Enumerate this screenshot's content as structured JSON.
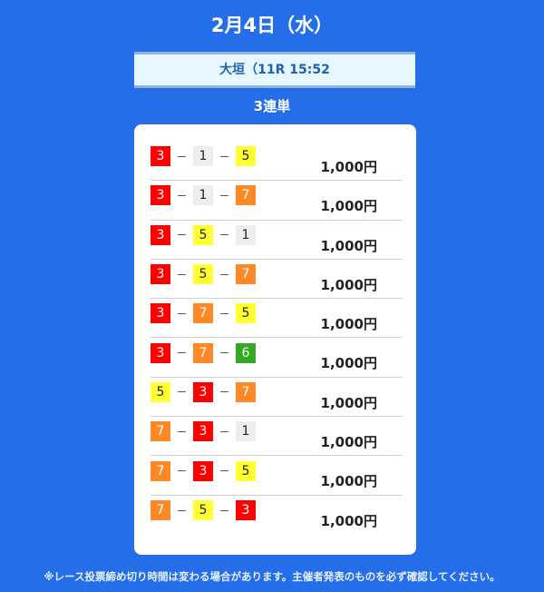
{
  "title": "2月4日（水）",
  "venue": "大垣（11R 15:52",
  "bet_type": "3連単",
  "colors": {
    "1": "#eeeeee",
    "3": "#ff0000",
    "5": "#ffff33",
    "6": "#35a825",
    "7": "#ff8826"
  },
  "text_colors": {
    "1": "#222222",
    "3": "#ffffff",
    "5": "#222222",
    "6": "#ffffff",
    "7": "#ffffff"
  },
  "bets": [
    {
      "combo": [
        "3",
        "1",
        "5"
      ],
      "amount": "1,000円"
    },
    {
      "combo": [
        "3",
        "1",
        "7"
      ],
      "amount": "1,000円"
    },
    {
      "combo": [
        "3",
        "5",
        "1"
      ],
      "amount": "1,000円"
    },
    {
      "combo": [
        "3",
        "5",
        "7"
      ],
      "amount": "1,000円"
    },
    {
      "combo": [
        "3",
        "7",
        "5"
      ],
      "amount": "1,000円"
    },
    {
      "combo": [
        "3",
        "7",
        "6"
      ],
      "amount": "1,000円"
    },
    {
      "combo": [
        "5",
        "3",
        "7"
      ],
      "amount": "1,000円"
    },
    {
      "combo": [
        "7",
        "3",
        "1"
      ],
      "amount": "1,000円"
    },
    {
      "combo": [
        "7",
        "3",
        "5"
      ],
      "amount": "1,000円"
    },
    {
      "combo": [
        "7",
        "5",
        "3"
      ],
      "amount": "1,000円"
    }
  ],
  "separator": "－",
  "note": "※レース投票締め切り時間は変わる場合があります。主催者発表のものを必ず確認してください。"
}
